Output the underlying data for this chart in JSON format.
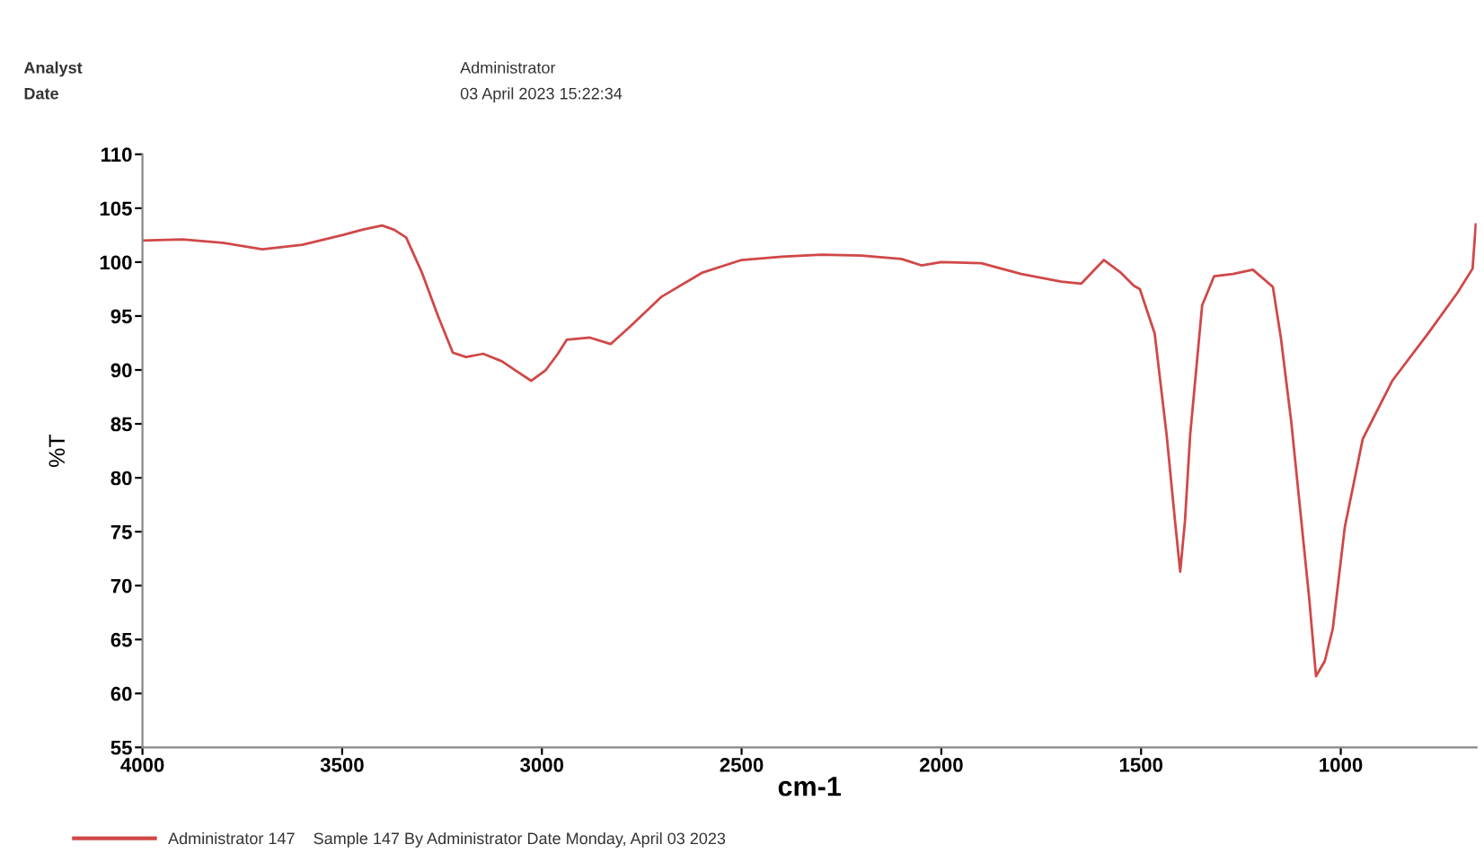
{
  "chart_data": {
    "type": "line",
    "xlabel": "cm-1",
    "ylabel": "%T",
    "annotations": [
      "Analyst",
      "Date",
      "Administrator",
      "03 April 2023 15:22:34"
    ],
    "xlim": [
      4000,
      660
    ],
    "xticks": [
      4000,
      3500,
      3000,
      2500,
      2000,
      1500,
      1000
    ],
    "ylim": [
      55,
      110
    ],
    "yticks": [
      55,
      60,
      65,
      70,
      75,
      80,
      85,
      90,
      95,
      100,
      105,
      110
    ],
    "grid": false,
    "legend": "bottom",
    "marker": "none",
    "line_style": "solid",
    "series": [
      {
        "name": "Administrator 147    Sample 147 By Administrator Date Monday, April 03 2023",
        "color": "#d04848",
        "x": [
          4000,
          3900,
          3800,
          3700,
          3600,
          3500,
          3450,
          3400,
          3370,
          3340,
          3300,
          3260,
          3223,
          3190,
          3147,
          3100,
          3060,
          3027,
          2990,
          2960,
          2938,
          2880,
          2828,
          2780,
          2700,
          2600,
          2500,
          2400,
          2300,
          2200,
          2100,
          2050,
          2000,
          1900,
          1800,
          1700,
          1650,
          1593,
          1550,
          1518,
          1503,
          1466,
          1436,
          1415,
          1402,
          1390,
          1377,
          1347,
          1317,
          1270,
          1220,
          1170,
          1150,
          1124,
          1079,
          1062,
          1040,
          1020,
          990,
          945,
          871,
          781,
          707,
          670,
          662
        ],
        "values": [
          102.0,
          102.1,
          101.8,
          101.2,
          101.6,
          102.5,
          103.0,
          103.4,
          103.0,
          102.3,
          99.0,
          95.0,
          91.6,
          91.2,
          91.5,
          90.8,
          89.8,
          89.0,
          90.0,
          91.5,
          92.8,
          93.0,
          92.4,
          94.0,
          96.8,
          99.0,
          100.2,
          100.5,
          100.7,
          100.6,
          100.3,
          99.7,
          100.0,
          99.9,
          98.9,
          98.2,
          98.0,
          100.2,
          99.0,
          97.8,
          97.5,
          93.4,
          84.0,
          76.0,
          71.3,
          76.0,
          84.0,
          96.0,
          98.7,
          98.9,
          99.3,
          97.7,
          93.0,
          85.2,
          68.8,
          61.6,
          63.0,
          66.0,
          75.4,
          83.6,
          89.0,
          93.4,
          97.2,
          99.4,
          103.5
        ]
      }
    ]
  }
}
